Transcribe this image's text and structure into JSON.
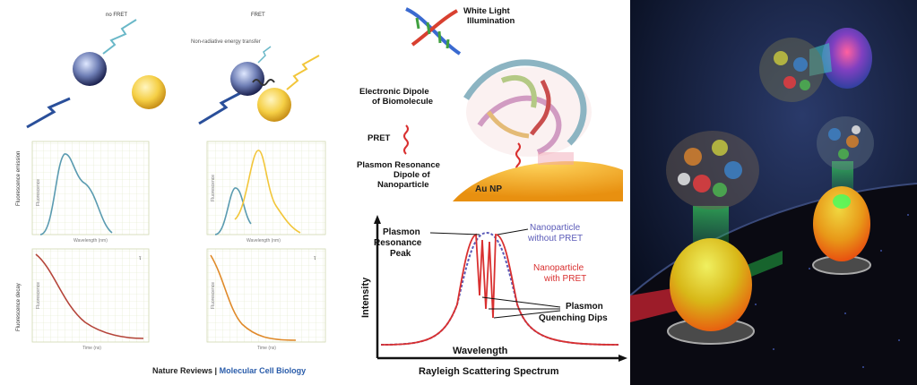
{
  "left_panel": {
    "col1_title": "no FRET",
    "col2_title": "FRET",
    "transfer_label": "Non-radiative energy transfer",
    "row1_ylabel": "Fluorescence emission",
    "row2_ylabel": "Fluorescence decay",
    "plot_axis_y_top": "Fluorescence",
    "plot_axis_x_top": "Wavelength (nm)",
    "plot_axis_y_bottom": "Fluorescence",
    "plot_axis_x_bottom": "Time (ns)",
    "tau_label": "τ",
    "credit_journal": "Nature Reviews",
    "credit_separator": "|",
    "credit_subject": "Molecular Cell Biology",
    "colors": {
      "donor_blue": "#5a9bb0",
      "acceptor_yellow": "#f2c63a",
      "decay_red": "#b5453a"
    }
  },
  "middle_panel": {
    "white_light_line1": "White Light",
    "white_light_line2": "Illumination",
    "dipole_line1": "Electronic Dipole",
    "dipole_line2": "of Biomolecule",
    "pret_label": "PRET",
    "plasmon_line1": "Plasmon Resonance",
    "plasmon_line2": "Dipole of",
    "plasmon_line3": "Nanoparticle",
    "au_label": "Au NP",
    "chart_ylabel": "Intensity",
    "chart_xlabel": "Wavelength",
    "chart_title": "Rayleigh Scattering Spectrum",
    "peak_line1": "Plasmon",
    "peak_line2": "Resonance",
    "peak_line3": "Peak",
    "np_without_line1": "Nanoparticle",
    "np_without_line2": "without PRET",
    "np_with_line1": "Nanoparticle",
    "np_with_line2": "with PRET",
    "dips_line1": "Plasmon",
    "dips_line2": "Quenching Dips",
    "colors": {
      "without": "#5b5bb8",
      "with": "#d93030",
      "gold": "#f0a020"
    }
  },
  "right_panel": {
    "colors": {
      "background": "#06101f",
      "gold_sphere": "#d8c020",
      "orange_sphere": "#e87818",
      "green_glow": "#40d060"
    }
  }
}
